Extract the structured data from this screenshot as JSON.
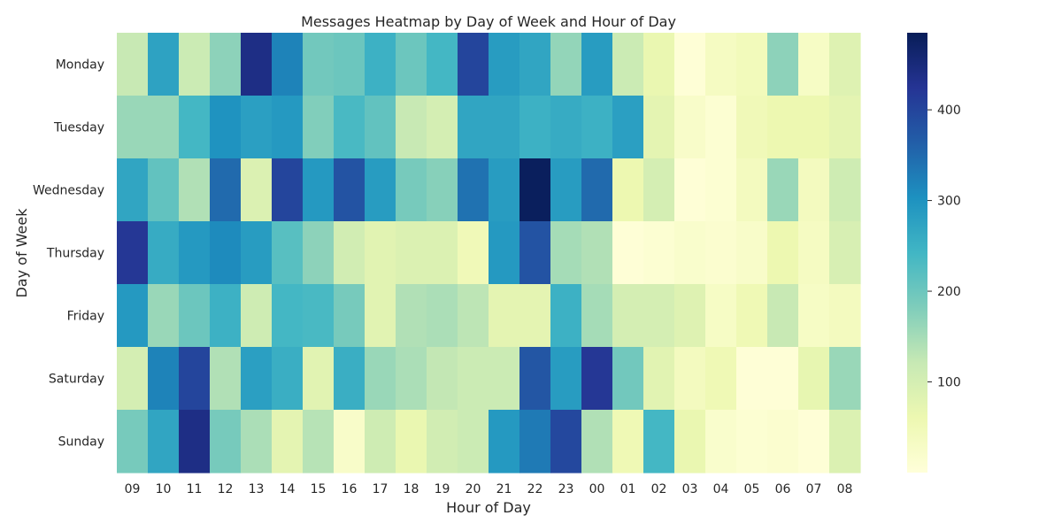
{
  "chart_data": {
    "type": "heatmap",
    "title": "Messages Heatmap by Day of Week and Hour of Day",
    "xlabel": "Hour of Day",
    "ylabel": "Day of Week",
    "x_categories": [
      "09",
      "10",
      "11",
      "12",
      "13",
      "14",
      "15",
      "16",
      "17",
      "18",
      "19",
      "20",
      "21",
      "22",
      "23",
      "00",
      "01",
      "02",
      "03",
      "04",
      "05",
      "06",
      "07",
      "08"
    ],
    "y_categories": [
      "Monday",
      "Tuesday",
      "Wednesday",
      "Thursday",
      "Friday",
      "Saturday",
      "Sunday"
    ],
    "values": [
      [
        120,
        275,
        115,
        170,
        440,
        320,
        195,
        200,
        250,
        200,
        240,
        400,
        285,
        270,
        165,
        285,
        115,
        65,
        5,
        35,
        45,
        170,
        30,
        85
      ],
      [
        160,
        160,
        240,
        300,
        280,
        290,
        180,
        235,
        210,
        120,
        100,
        270,
        270,
        250,
        260,
        250,
        280,
        75,
        25,
        10,
        50,
        60,
        60,
        75
      ],
      [
        270,
        210,
        140,
        350,
        90,
        400,
        290,
        380,
        285,
        190,
        175,
        340,
        285,
        480,
        285,
        350,
        60,
        100,
        5,
        10,
        40,
        160,
        40,
        110
      ],
      [
        420,
        260,
        290,
        310,
        285,
        220,
        170,
        105,
        80,
        90,
        90,
        50,
        290,
        380,
        150,
        140,
        5,
        10,
        20,
        15,
        25,
        60,
        35,
        95
      ],
      [
        290,
        160,
        200,
        250,
        110,
        240,
        235,
        190,
        80,
        140,
        145,
        130,
        75,
        75,
        250,
        150,
        100,
        100,
        85,
        30,
        55,
        120,
        30,
        40
      ],
      [
        100,
        320,
        400,
        140,
        280,
        255,
        80,
        255,
        160,
        145,
        125,
        115,
        115,
        375,
        285,
        420,
        195,
        80,
        40,
        55,
        5,
        5,
        70,
        160
      ],
      [
        190,
        270,
        440,
        190,
        145,
        75,
        135,
        25,
        110,
        65,
        105,
        115,
        290,
        330,
        395,
        140,
        55,
        240,
        65,
        20,
        10,
        15,
        5,
        90
      ]
    ],
    "colorbar": {
      "min": 0,
      "max": 485,
      "ticks": [
        100,
        200,
        300,
        400
      ],
      "colormap": "YlGnBu",
      "stops": [
        "#ffffd9",
        "#edf8b1",
        "#c7e9b4",
        "#7fcdbb",
        "#41b6c4",
        "#1d91c0",
        "#225ea8",
        "#253494",
        "#081d58"
      ]
    },
    "grid": false,
    "legend": "colorbar-right"
  }
}
